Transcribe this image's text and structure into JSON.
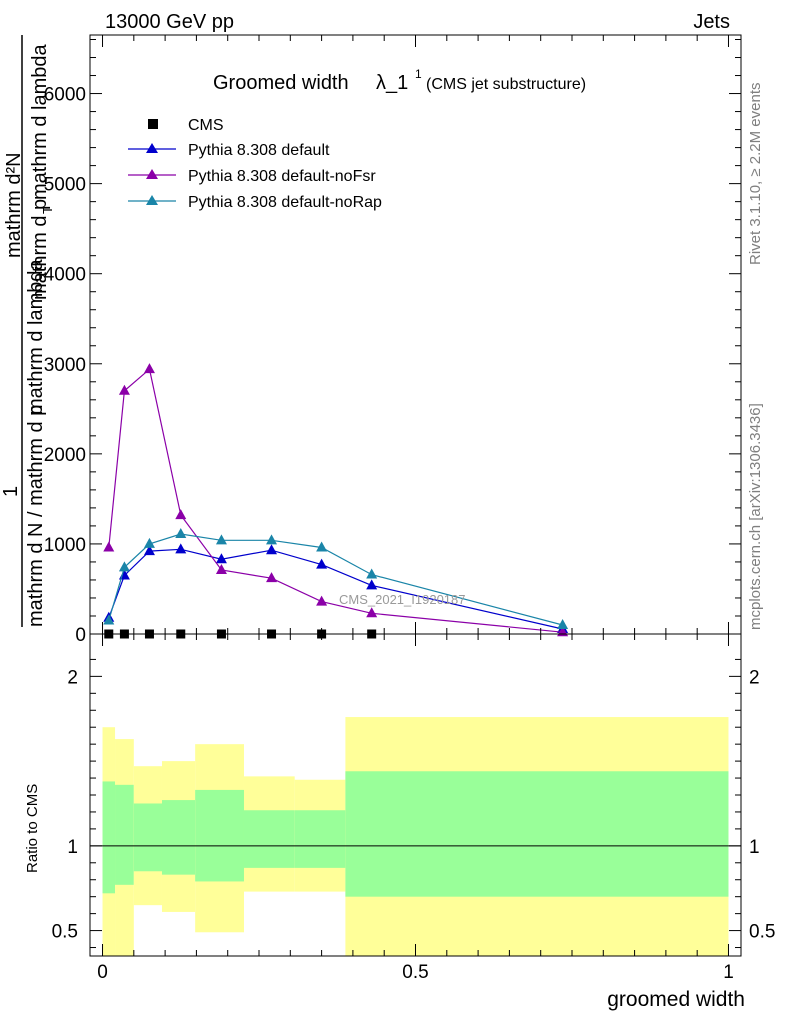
{
  "header": {
    "left": "13000 GeV pp",
    "right": "Jets"
  },
  "side_labels": {
    "rivet": "Rivet 3.1.10, ≥ 2.2M events",
    "mcplots": "mcplots.cern.ch [arXiv:1306.3436]"
  },
  "chart_data": [
    {
      "type": "line",
      "title_main": "Groomed width",
      "title_symbol": "λ_1",
      "title_sup": "1",
      "title_sub": "(CMS jet substructure)",
      "ylabel": "1 / mathrm d N / mathrm d p_T mathrm d lambda    mathrm d^2N / mathrm d p_T mathrm d lambda",
      "ylabel_line1": "1",
      "ylabel_line2": "mathrm d N / mathrm d p",
      "ylabel_line3": "mathrm d p",
      "ylabel_numerator": "mathrm d²N",
      "ylabel_denominator_a": "mathrm d p",
      "ylabel_denominator_b": "T",
      "ylabel_denominator_c": "mathrm d lambda",
      "ylabel_left": "mathrm d N / mathrm d p",
      "ylabel_left2": "mathrm d lambda",
      "xlim": [
        -0.02,
        1.02
      ],
      "ylim": [
        0,
        6650
      ],
      "yticks": [
        0,
        1000,
        2000,
        3000,
        4000,
        5000,
        6000
      ],
      "ytick_labels": [
        "0",
        "1000",
        "2000",
        "3000",
        "4000",
        "5000",
        "6000"
      ],
      "watermark": "CMS_2021_I1920187",
      "legend_position": "top-left",
      "grid": false,
      "series": [
        {
          "name": "CMS",
          "color": "#000000",
          "marker": "square",
          "x": [
            0.01,
            0.035,
            0.075,
            0.125,
            0.19,
            0.27,
            0.35,
            0.43
          ],
          "y": [
            0,
            0,
            0,
            0,
            0,
            0,
            0,
            0
          ]
        },
        {
          "name": "Pythia 8.308 default",
          "color": "#0000cc",
          "marker": "triangle",
          "x": [
            0.01,
            0.035,
            0.075,
            0.125,
            0.19,
            0.27,
            0.35,
            0.43,
            0.735
          ],
          "y": [
            180,
            650,
            920,
            940,
            830,
            930,
            770,
            540,
            55
          ]
        },
        {
          "name": "Pythia 8.308 default-noFsr",
          "color": "#8b00a8",
          "marker": "triangle",
          "x": [
            0.01,
            0.035,
            0.075,
            0.125,
            0.19,
            0.27,
            0.35,
            0.43,
            0.735
          ],
          "y": [
            960,
            2700,
            2940,
            1320,
            710,
            620,
            360,
            230,
            20
          ]
        },
        {
          "name": "Pythia 8.308 default-noRap",
          "color": "#1a85a8",
          "marker": "triangle",
          "x": [
            0.01,
            0.035,
            0.075,
            0.125,
            0.19,
            0.27,
            0.35,
            0.43,
            0.735
          ],
          "y": [
            150,
            740,
            1000,
            1110,
            1040,
            1040,
            960,
            660,
            100
          ]
        }
      ]
    },
    {
      "type": "area",
      "ylabel": "Ratio to CMS",
      "xlabel": "groomed width",
      "xlim": [
        -0.02,
        1.02
      ],
      "ylim": [
        0.35,
        2.25
      ],
      "yticks": [
        0.5,
        1,
        2
      ],
      "ytick_labels": [
        "0.5",
        "1",
        "2"
      ],
      "xticks": [
        0,
        0.5,
        1
      ],
      "xtick_labels": [
        "0",
        "0.5",
        "1"
      ],
      "reference_line": 1,
      "bins": [
        {
          "x0": 0.0,
          "x1": 0.02,
          "stat_lo": 0.72,
          "stat_hi": 1.38,
          "tot_lo": 0.3,
          "tot_hi": 1.7
        },
        {
          "x0": 0.02,
          "x1": 0.05,
          "stat_lo": 0.77,
          "stat_hi": 1.36,
          "tot_lo": 0.35,
          "tot_hi": 1.63
        },
        {
          "x0": 0.05,
          "x1": 0.095,
          "stat_lo": 0.85,
          "stat_hi": 1.25,
          "tot_lo": 0.65,
          "tot_hi": 1.47
        },
        {
          "x0": 0.095,
          "x1": 0.148,
          "stat_lo": 0.83,
          "stat_hi": 1.27,
          "tot_lo": 0.61,
          "tot_hi": 1.5
        },
        {
          "x0": 0.148,
          "x1": 0.226,
          "stat_lo": 0.79,
          "stat_hi": 1.33,
          "tot_lo": 0.49,
          "tot_hi": 1.6
        },
        {
          "x0": 0.226,
          "x1": 0.307,
          "stat_lo": 0.87,
          "stat_hi": 1.21,
          "tot_lo": 0.73,
          "tot_hi": 1.41
        },
        {
          "x0": 0.307,
          "x1": 0.388,
          "stat_lo": 0.87,
          "stat_hi": 1.21,
          "tot_lo": 0.73,
          "tot_hi": 1.39
        },
        {
          "x0": 0.388,
          "x1": 1.0,
          "stat_lo": 0.7,
          "stat_hi": 1.44,
          "tot_lo": 0.35,
          "tot_hi": 1.76
        }
      ],
      "colors": {
        "stat": "#99ff99",
        "total": "#ffff99"
      }
    }
  ]
}
